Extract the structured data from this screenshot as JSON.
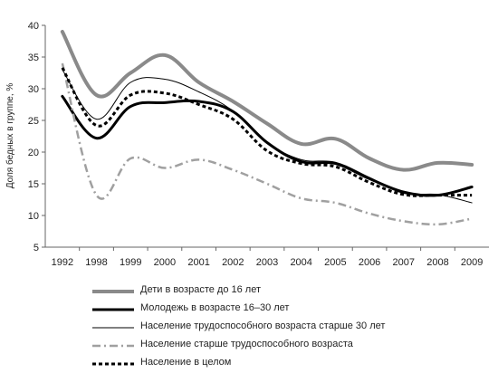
{
  "chart_data": {
    "type": "line",
    "title": "",
    "xlabel": "",
    "ylabel": "Доля бедных в группе, %",
    "ylim": [
      5,
      40
    ],
    "yticks": [
      "5",
      "10",
      "15",
      "20",
      "25",
      "30",
      "35",
      "40"
    ],
    "grid": false,
    "legend_position": "bottom",
    "x": [
      "1992",
      "1998",
      "1999",
      "2000",
      "2001",
      "2002",
      "2003",
      "2004",
      "2005",
      "2006",
      "2007",
      "2008",
      "2009"
    ],
    "series": [
      {
        "name": "Дети в возрасте до 16 лет",
        "values": [
          39,
          29,
          32.5,
          35.3,
          31,
          28,
          24.5,
          21.3,
          22.1,
          19,
          17.2,
          18.3,
          18
        ],
        "color": "#8a8a8a",
        "style": "solid-thick"
      },
      {
        "name": "Молодежь в возрасте 16–30 лет",
        "values": [
          28.8,
          22.2,
          27.2,
          27.8,
          28,
          26.4,
          21.5,
          18.5,
          18.2,
          15.8,
          13.7,
          13.2,
          14.5
        ],
        "color": "#000000",
        "style": "solid-bold"
      },
      {
        "name": "Население трудоспособного возраста старше 30 лет",
        "values": [
          33,
          25.2,
          31,
          31.5,
          29.5,
          26.5,
          21.5,
          18.8,
          18.4,
          16,
          13.5,
          13.3,
          12
        ],
        "color": "#000000",
        "style": "solid-thin"
      },
      {
        "name": "Население старше трудоспособного возраста",
        "values": [
          34,
          13.2,
          19,
          17.5,
          18.8,
          17.2,
          15,
          12.7,
          12,
          10.3,
          9.1,
          8.6,
          9.5
        ],
        "color": "#a0a0a0",
        "style": "dashdot"
      },
      {
        "name": "Население в целом",
        "values": [
          33.3,
          24.2,
          29,
          29.3,
          27.5,
          25.2,
          20.2,
          18.2,
          17.7,
          15.2,
          13.3,
          13.2,
          13.2
        ],
        "color": "#000000",
        "style": "dotted"
      }
    ]
  }
}
